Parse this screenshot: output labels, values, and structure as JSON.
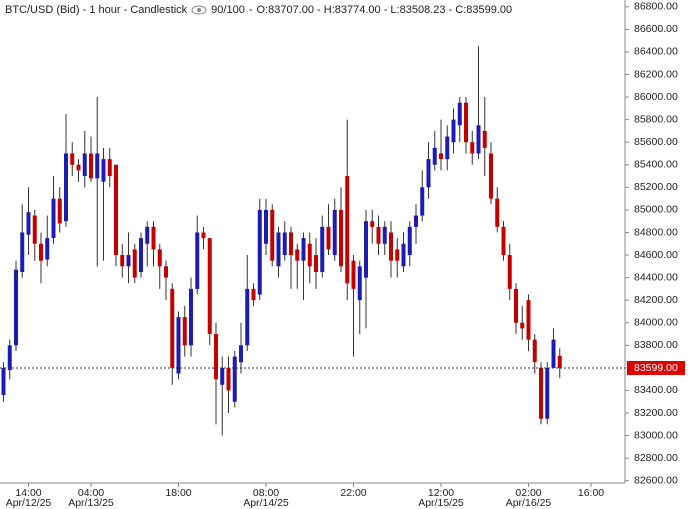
{
  "chart_data": {
    "type": "candlestick",
    "title": "BTC/USD (Bid) - 1 hour - Candlestick",
    "counter": "90/100",
    "ohlc_text": "O:83707.00 - H:83774.00 - L:83508.23 - C:83599.00",
    "categories": [
      null,
      null,
      null,
      null,
      "14:00",
      null,
      null,
      null,
      null,
      null,
      null,
      null,
      null,
      null,
      "04:00",
      null,
      null,
      null,
      null,
      null,
      null,
      null,
      null,
      null,
      null,
      null,
      null,
      null,
      "18:00",
      null,
      null,
      null,
      null,
      null,
      null,
      null,
      null,
      null,
      null,
      null,
      null,
      null,
      "08:00",
      null,
      null,
      null,
      null,
      null,
      null,
      null,
      null,
      null,
      null,
      null,
      null,
      null,
      "22:00",
      null,
      null,
      null,
      null,
      null,
      null,
      null,
      null,
      null,
      null,
      null,
      null,
      null,
      "12:00",
      null,
      null,
      null,
      null,
      null,
      null,
      null,
      null,
      null,
      null,
      null,
      null,
      null,
      "02:00",
      null,
      null,
      null,
      null,
      null,
      null,
      null,
      null,
      null,
      "16:00"
    ],
    "dates": [
      null,
      null,
      null,
      null,
      "Apr/12/25",
      null,
      null,
      null,
      null,
      null,
      null,
      null,
      null,
      null,
      "Apr/13/25",
      null,
      null,
      null,
      null,
      null,
      null,
      null,
      null,
      null,
      null,
      null,
      null,
      null,
      null,
      null,
      null,
      null,
      null,
      null,
      null,
      null,
      null,
      null,
      null,
      null,
      null,
      null,
      "Apr/14/25",
      null,
      null,
      null,
      null,
      null,
      null,
      null,
      null,
      null,
      null,
      null,
      null,
      null,
      null,
      null,
      null,
      null,
      null,
      null,
      null,
      null,
      null,
      null,
      null,
      null,
      null,
      null,
      "Apr/15/25",
      null,
      null,
      null,
      null,
      null,
      null,
      null,
      null,
      null,
      null,
      null,
      null,
      null,
      "Apr/16/25",
      null,
      null,
      null,
      null,
      null,
      null,
      null,
      null,
      null,
      null
    ],
    "open": [
      83360,
      83580,
      83800,
      84450,
      84780,
      84950,
      84700,
      84560,
      84750,
      85100,
      84900,
      85500,
      85400,
      85300,
      85500,
      85280,
      85250,
      85450,
      85400,
      84600,
      84500,
      84650,
      84450,
      84700,
      84850,
      84650,
      84500,
      84300,
      83550,
      84050,
      83800,
      84300,
      84800,
      84750,
      83900,
      83450,
      83600,
      83300,
      83650,
      83800,
      84300,
      84250,
      84700,
      85000,
      84500,
      84600,
      84800,
      84650,
      84550,
      84700,
      84600,
      84450,
      84850,
      84600,
      85000,
      85300,
      84550,
      84200,
      84400,
      84900,
      84850,
      84700,
      84800,
      84650,
      84500,
      84600,
      84850,
      84950,
      85200,
      85400,
      85500,
      85450,
      85600,
      85750,
      85950,
      85600,
      85500,
      85700,
      85500,
      85100,
      84850,
      84600,
      84300,
      84000,
      84200,
      83850,
      83600,
      83150,
      83600,
      83707,
      null,
      null,
      null,
      null,
      null
    ],
    "high": [
      83650,
      83850,
      84550,
      85050,
      85200,
      85000,
      84800,
      84950,
      85300,
      85200,
      85850,
      85600,
      85450,
      85700,
      85650,
      86000,
      85550,
      85550,
      85400,
      84700,
      84800,
      84700,
      84800,
      84900,
      84900,
      84700,
      84550,
      84350,
      84100,
      84150,
      84400,
      84950,
      84850,
      84750,
      84000,
      83700,
      83700,
      83750,
      84000,
      84600,
      84350,
      85100,
      85100,
      85050,
      84850,
      84900,
      84850,
      84700,
      84800,
      84800,
      84750,
      84950,
      85050,
      85100,
      85200,
      85800,
      84600,
      84550,
      85000,
      85000,
      84950,
      84900,
      84900,
      84750,
      84800,
      84900,
      85050,
      85350,
      85600,
      85700,
      85800,
      85750,
      85900,
      86000,
      86000,
      85700,
      86450,
      86000,
      85600,
      85200,
      84900,
      84700,
      84350,
      84150,
      84250,
      83900,
      83650,
      83650,
      83950,
      83774,
      null,
      null,
      null,
      null,
      null
    ],
    "low": [
      83300,
      83500,
      83750,
      84400,
      84600,
      84550,
      84350,
      84500,
      84700,
      84800,
      84850,
      85300,
      85250,
      85200,
      85250,
      84500,
      84550,
      85200,
      84500,
      84400,
      84350,
      84350,
      84400,
      84500,
      84500,
      84300,
      84200,
      83450,
      83500,
      83700,
      83700,
      84250,
      84650,
      83800,
      83100,
      83000,
      83200,
      83250,
      83550,
      83750,
      84150,
      84200,
      84600,
      84500,
      84400,
      84550,
      84300,
      84300,
      84200,
      84350,
      84300,
      84400,
      84600,
      84550,
      84450,
      84200,
      83700,
      83900,
      83950,
      84700,
      84600,
      84600,
      84400,
      84400,
      84450,
      84500,
      84700,
      84900,
      85100,
      85350,
      85350,
      85350,
      85500,
      85600,
      85500,
      85400,
      85450,
      85300,
      85050,
      84800,
      84550,
      84200,
      83900,
      83850,
      83750,
      83550,
      83100,
      83100,
      83600,
      83508.23,
      null,
      null,
      null,
      null,
      null
    ],
    "close": [
      83600,
      83800,
      84470,
      84800,
      84980,
      84700,
      84550,
      84750,
      85100,
      84880,
      85500,
      85400,
      85350,
      85500,
      85280,
      85500,
      85450,
      85300,
      84600,
      84500,
      84600,
      84400,
      84750,
      84850,
      84650,
      84500,
      84400,
      83600,
      84050,
      83800,
      84300,
      84800,
      84750,
      83900,
      83500,
      83600,
      83400,
      83700,
      83800,
      84300,
      84200,
      85000,
      85000,
      84550,
      84800,
      84800,
      84600,
      84550,
      84750,
      84500,
      84450,
      84850,
      84650,
      85000,
      84500,
      84350,
      84300,
      84500,
      84900,
      84850,
      84700,
      84850,
      84550,
      84550,
      84700,
      84850,
      84950,
      85200,
      85450,
      85550,
      85450,
      85650,
      85800,
      85950,
      85600,
      85500,
      85750,
      85550,
      85100,
      84850,
      84600,
      84300,
      84000,
      83950,
      83850,
      83650,
      83150,
      83600,
      83850,
      83599,
      null,
      null,
      null,
      null,
      null
    ],
    "up_color": "#1c1cb4",
    "down_color": "#c40000",
    "wick_color": "#333333",
    "last_price": {
      "value": 83599,
      "label": "83599.00"
    },
    "last_price_color": "#e00000",
    "ylim": [
      82580,
      86860
    ],
    "yticks": [
      {
        "value": 82600,
        "label": "82600.00"
      },
      {
        "value": 82800,
        "label": "82800.00"
      },
      {
        "value": 83000,
        "label": "83000.00"
      },
      {
        "value": 83200,
        "label": "83200.00"
      },
      {
        "value": 83400,
        "label": "83400.00"
      },
      {
        "value": 83600,
        "label": "83600.00"
      },
      {
        "value": 83800,
        "label": "83800.00"
      },
      {
        "value": 84000,
        "label": "84000.00"
      },
      {
        "value": 84200,
        "label": "84200.00"
      },
      {
        "value": 84400,
        "label": "84400.00"
      },
      {
        "value": 84600,
        "label": "84600.00"
      },
      {
        "value": 84800,
        "label": "84800.00"
      },
      {
        "value": 85000,
        "label": "85000.00"
      },
      {
        "value": 85200,
        "label": "85200.00"
      },
      {
        "value": 85400,
        "label": "85400.00"
      },
      {
        "value": 85600,
        "label": "85600.00"
      },
      {
        "value": 85800,
        "label": "85800.00"
      },
      {
        "value": 86000,
        "label": "86000.00"
      },
      {
        "value": 86200,
        "label": "86200.00"
      },
      {
        "value": 86400,
        "label": "86400.00"
      },
      {
        "value": 86600,
        "label": "86600.00"
      },
      {
        "value": 86800,
        "label": "86800.00"
      }
    ],
    "grid": false
  }
}
